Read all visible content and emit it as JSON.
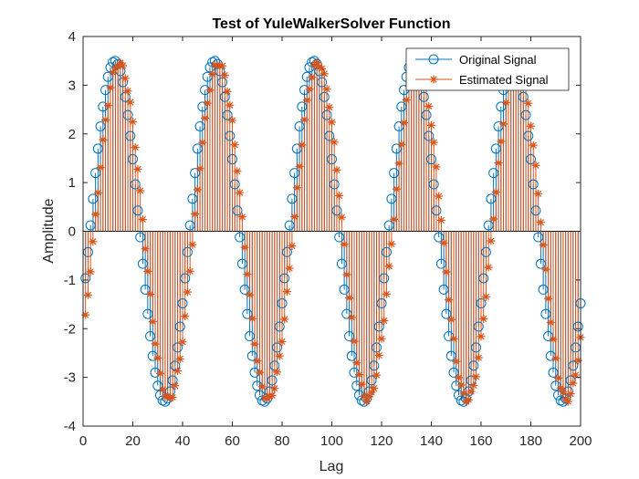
{
  "chart_data": {
    "type": "stem",
    "title": "Test of YuleWalkerSolver Function",
    "xlabel": "Lag",
    "ylabel": "Amplitude",
    "xlim": [
      0,
      200
    ],
    "ylim": [
      -4,
      4
    ],
    "xticks": [
      "0",
      "20",
      "40",
      "60",
      "80",
      "100",
      "120",
      "140",
      "160",
      "180",
      "200"
    ],
    "yticks": [
      "-4",
      "-3",
      "-2",
      "-1",
      "0",
      "1",
      "2",
      "3",
      "4"
    ],
    "grid": false,
    "legend_position": "top-right",
    "x_range": [
      1,
      200
    ],
    "series": [
      {
        "name": "Original Signal",
        "color": "#0072BD",
        "marker": "circle",
        "amplitude": 3.5,
        "period_lags": 40,
        "phase_deg": -25,
        "estimated": false
      },
      {
        "name": "Estimated Signal",
        "color": "#D95319",
        "marker": "asterisk",
        "amplitude": 3.45,
        "period_lags": 40,
        "phase_deg": -40,
        "estimated": true
      }
    ]
  }
}
